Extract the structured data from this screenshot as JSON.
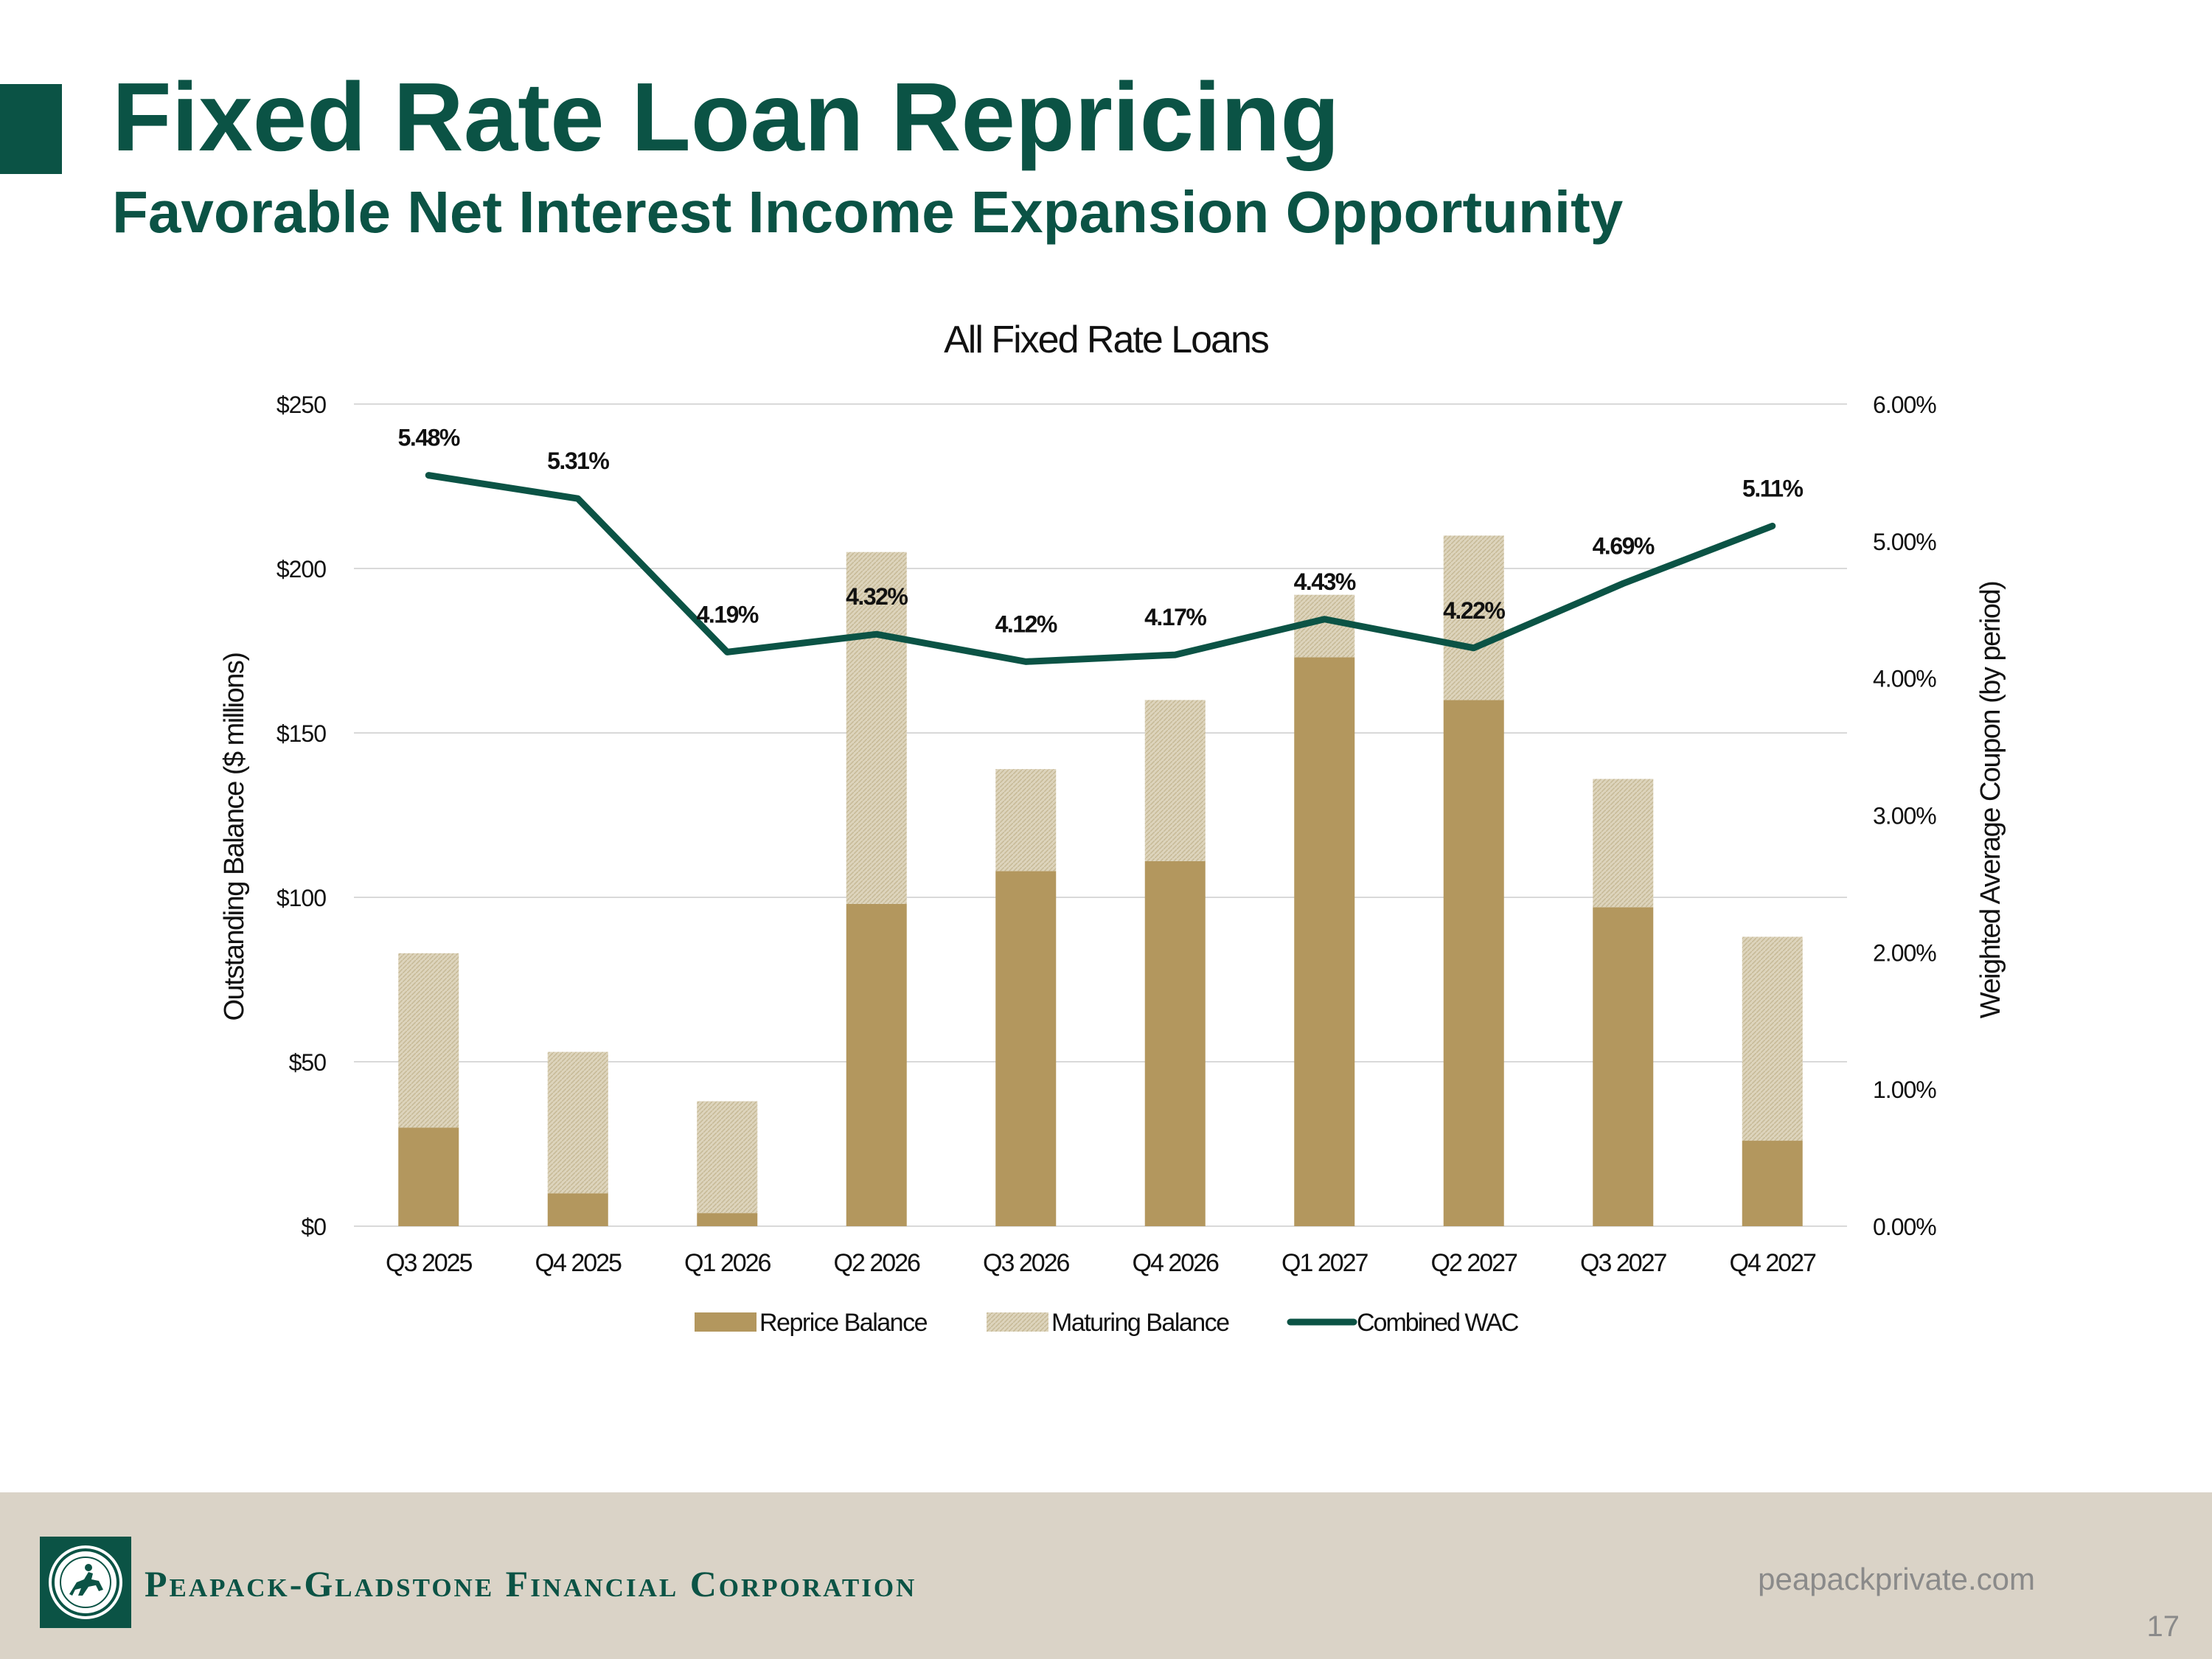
{
  "slide": {
    "title": "Fixed Rate Loan Repricing",
    "subtitle": "Favorable Net Interest Income Expansion Opportunity"
  },
  "footer": {
    "company": "Peapack-Gladstone Financial Corporation",
    "website": "peapackprivate.com",
    "page_number": "17"
  },
  "colors": {
    "brand_green": "#0b5345",
    "reprice": "#b3975e",
    "maturing": "#d6ccb1",
    "footer_bg": "#dad3c7",
    "grid": "#d9d9d9"
  },
  "chart_data": {
    "type": "bar",
    "stacked": true,
    "title": "All Fixed Rate Loans",
    "ylabel": "Outstanding Balance ($ millions)",
    "y2label": "Weighted Average Coupon (by period)",
    "ylim": [
      0,
      250
    ],
    "y2lim": [
      0,
      6
    ],
    "y_ticks": [
      "$0",
      "$50",
      "$100",
      "$150",
      "$200",
      "$250"
    ],
    "y2_ticks": [
      "0.00%",
      "1.00%",
      "2.00%",
      "3.00%",
      "4.00%",
      "5.00%",
      "6.00%"
    ],
    "categories": [
      "Q3 2025",
      "Q4 2025",
      "Q1 2026",
      "Q2 2026",
      "Q3 2026",
      "Q4 2026",
      "Q1 2027",
      "Q2 2027",
      "Q3 2027",
      "Q4 2027"
    ],
    "series": [
      {
        "name": "Reprice Balance",
        "type": "bar",
        "values": [
          30,
          10,
          4,
          98,
          108,
          111,
          173,
          160,
          97,
          26
        ]
      },
      {
        "name": "Maturing Balance",
        "type": "bar",
        "values": [
          53,
          43,
          34,
          107,
          31,
          49,
          19,
          50,
          39,
          62
        ]
      },
      {
        "name": "Combined WAC",
        "type": "line",
        "axis": "secondary",
        "values": [
          5.48,
          5.31,
          4.19,
          4.32,
          4.12,
          4.17,
          4.43,
          4.22,
          4.69,
          5.11
        ]
      }
    ],
    "line_labels": [
      "5.48%",
      "5.31%",
      "4.19%",
      "4.32%",
      "4.12%",
      "4.17%",
      "4.43%",
      "4.22%",
      "4.69%",
      "5.11%"
    ],
    "legend": [
      "Reprice Balance",
      "Maturing Balance",
      "Combined WAC"
    ],
    "legend_position": "bottom",
    "grid": true
  }
}
